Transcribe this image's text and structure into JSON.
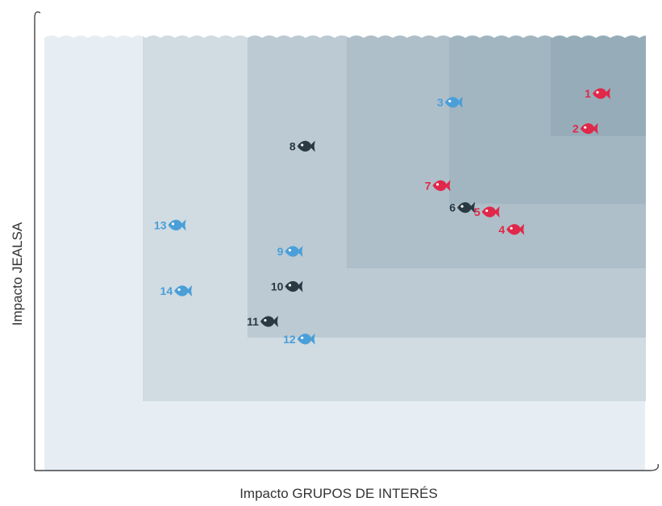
{
  "chart_data": {
    "type": "scatter",
    "title": "",
    "xlabel": "Impacto GRUPOS DE INTERÉS",
    "ylabel": "Impacto JEALSA",
    "xlim": [
      0,
      10
    ],
    "ylim": [
      0,
      10
    ],
    "grid": false,
    "legend": "none",
    "zone_colors": [
      "#e6eef3",
      "#d0dbe2",
      "#bccad3",
      "#aebfc9",
      "#a2b6c1",
      "#96adb9"
    ],
    "points": [
      {
        "label": "1",
        "x": 9.2,
        "y": 8.6,
        "color": "#e0284a"
      },
      {
        "label": "2",
        "x": 9.0,
        "y": 7.8,
        "color": "#e0284a"
      },
      {
        "label": "3",
        "x": 6.8,
        "y": 8.4,
        "color": "#4a9fd8"
      },
      {
        "label": "4",
        "x": 7.8,
        "y": 5.5,
        "color": "#e0284a"
      },
      {
        "label": "5",
        "x": 7.4,
        "y": 5.9,
        "color": "#e0284a"
      },
      {
        "label": "6",
        "x": 7.0,
        "y": 6.0,
        "color": "#2b3a42"
      },
      {
        "label": "7",
        "x": 6.6,
        "y": 6.5,
        "color": "#e0284a"
      },
      {
        "label": "8",
        "x": 4.4,
        "y": 7.4,
        "color": "#2b3a42"
      },
      {
        "label": "9",
        "x": 4.2,
        "y": 5.0,
        "color": "#4a9fd8"
      },
      {
        "label": "10",
        "x": 4.2,
        "y": 4.2,
        "color": "#2b3a42"
      },
      {
        "label": "11",
        "x": 3.8,
        "y": 3.4,
        "color": "#2b3a42"
      },
      {
        "label": "12",
        "x": 4.4,
        "y": 3.0,
        "color": "#4a9fd8"
      },
      {
        "label": "13",
        "x": 2.3,
        "y": 5.6,
        "color": "#4a9fd8"
      },
      {
        "label": "14",
        "x": 2.4,
        "y": 4.1,
        "color": "#4a9fd8"
      }
    ]
  }
}
